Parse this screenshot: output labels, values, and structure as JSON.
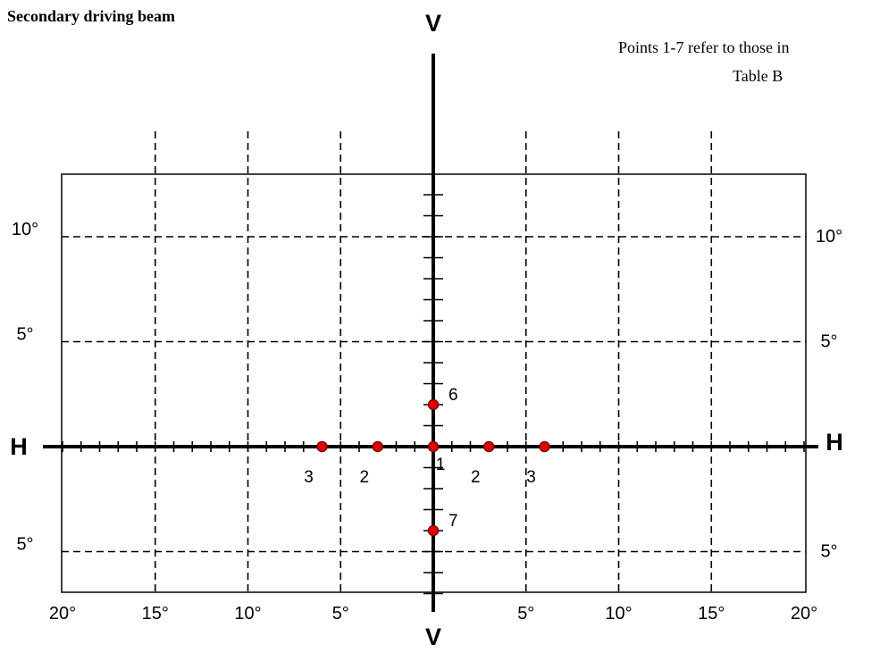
{
  "title": "Secondary driving beam",
  "note": [
    "Points 1-7 refer to those in",
    "Table B"
  ],
  "axis_letters": {
    "top": "V",
    "bottom": "V",
    "left": "H",
    "right": "H"
  },
  "degree_mark": "°",
  "scale": {
    "x_labels": [
      {
        "text": "20°",
        "deg": -20
      },
      {
        "text": "15°",
        "deg": -15
      },
      {
        "text": "10°",
        "deg": -10
      },
      {
        "text": "5°",
        "deg": -5
      },
      {
        "text": "5°",
        "deg": 5
      },
      {
        "text": "10°",
        "deg": 10
      },
      {
        "text": "15°",
        "deg": 15
      },
      {
        "text": "20°",
        "deg": 20
      }
    ],
    "y_labels_left": [
      {
        "text": "10°",
        "deg": 10
      },
      {
        "text": "5°",
        "deg": 5
      },
      {
        "text": "5°",
        "deg": -5
      }
    ],
    "y_labels_right": [
      {
        "text": "10°",
        "deg": 10
      },
      {
        "text": "5°",
        "deg": 5
      },
      {
        "text": "5°",
        "deg": -5
      }
    ]
  },
  "chart_data": {
    "type": "scatter",
    "xlim": [
      -20,
      20
    ],
    "ylim": [
      -7,
      13
    ],
    "grid_x": [
      -15,
      -10,
      -5,
      5,
      10,
      15
    ],
    "grid_y": [
      10,
      5,
      -5
    ],
    "points": [
      {
        "label": "1",
        "x": 0,
        "y": 0
      },
      {
        "label": "2",
        "x": -3,
        "y": 0
      },
      {
        "label": "2",
        "x": 3,
        "y": 0
      },
      {
        "label": "3",
        "x": -6,
        "y": 0
      },
      {
        "label": "3",
        "x": 6,
        "y": 0
      },
      {
        "label": "6",
        "x": 0,
        "y": 2
      },
      {
        "label": "7",
        "x": 0,
        "y": -4
      }
    ],
    "point_color": "#e00000"
  }
}
